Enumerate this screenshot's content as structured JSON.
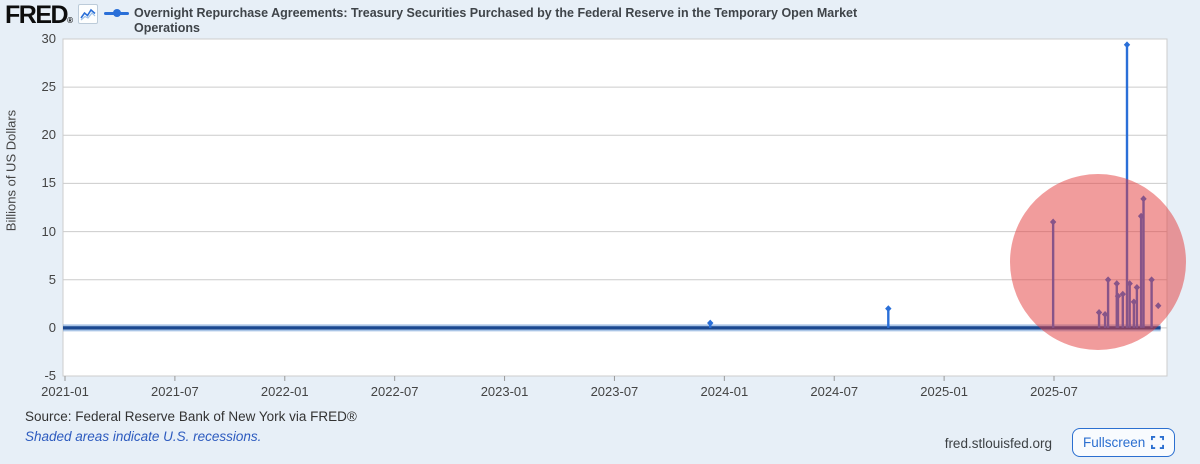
{
  "header": {
    "logo_text": "FRED",
    "registered_mark": "®",
    "series_title": "Overnight Repurchase Agreements: Treasury Securities Purchased by the Federal Reserve in the Temporary Open Market Operations"
  },
  "chart_data": {
    "type": "line",
    "title": "Overnight Repurchase Agreements: Treasury Securities Purchased by the Federal Reserve in the Temporary Open Market Operations",
    "xlabel": "",
    "ylabel": "Billions of US Dollars",
    "ylim": [
      -5,
      30
    ],
    "y_ticks": [
      30,
      25,
      20,
      15,
      10,
      5,
      0,
      -5
    ],
    "x_tick_labels": [
      "2021-01",
      "2021-07",
      "2022-01",
      "2022-07",
      "2023-01",
      "2023-07",
      "2024-01",
      "2024-07",
      "2025-01",
      "2025-07"
    ],
    "x_range_months_from_2021_01": [
      0,
      60.2
    ],
    "grid": true,
    "legend_position": "top",
    "line_color": "#2a6fd8",
    "baseline_color": "#1b4890",
    "baseline_halo_color": "rgba(100,150,210,0.55)",
    "baseline": {
      "value": 0,
      "start": "2021-01-01",
      "end": "2025-12-26"
    },
    "spikes": [
      {
        "date": "2023-12-08",
        "value": 0.5
      },
      {
        "date": "2024-09-30",
        "value": 2.0
      },
      {
        "date": "2025-06-30",
        "value": 11.0
      },
      {
        "date": "2025-09-15",
        "value": 1.6
      },
      {
        "date": "2025-09-25",
        "value": 1.4
      },
      {
        "date": "2025-09-30",
        "value": 5.0
      },
      {
        "date": "2025-10-14",
        "value": 4.6
      },
      {
        "date": "2025-10-16",
        "value": 3.3
      },
      {
        "date": "2025-10-24",
        "value": 3.5
      },
      {
        "date": "2025-10-31",
        "value": 29.4
      },
      {
        "date": "2025-11-05",
        "value": 4.6
      },
      {
        "date": "2025-11-12",
        "value": 2.7
      },
      {
        "date": "2025-11-17",
        "value": 4.2
      },
      {
        "date": "2025-11-24",
        "value": 11.6
      },
      {
        "date": "2025-11-28",
        "value": 13.4
      },
      {
        "date": "2025-12-11",
        "value": 5.0
      },
      {
        "date": "2025-12-22",
        "value": 2.3,
        "marker_only": true
      }
    ],
    "annotation": {
      "shape": "circle",
      "color": "rgba(228,58,58,0.5)",
      "note": "red highlight circle over late-2025 repo spikes"
    }
  },
  "footer": {
    "source": "Source: Federal Reserve Bank of New York via FRED®",
    "recession_note": "Shaded areas indicate U.S. recessions.",
    "site": "fred.stlouisfed.org",
    "fullscreen_label": "Fullscreen"
  }
}
